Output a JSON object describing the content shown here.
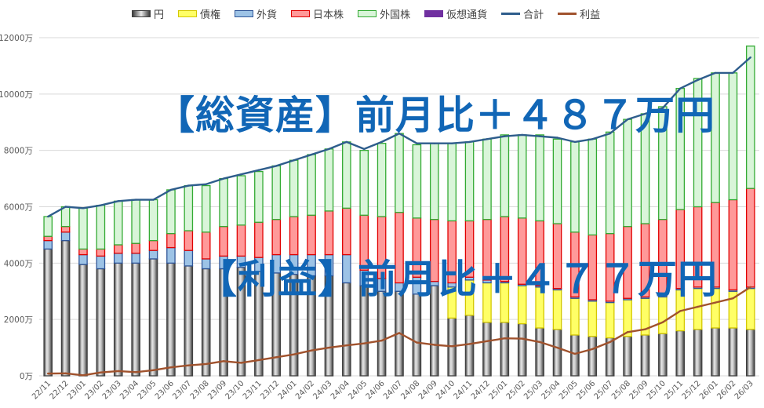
{
  "chart_data": {
    "type": "bar",
    "stacked": true,
    "categories": [
      "22/11",
      "22/12",
      "23/01",
      "23/02",
      "23/03",
      "23/04",
      "23/05",
      "23/06",
      "23/07",
      "23/08",
      "23/09",
      "23/10",
      "23/11",
      "23/12",
      "24/01",
      "24/02",
      "24/03",
      "24/04",
      "24/05",
      "24/06",
      "24/07",
      "24/08",
      "24/09",
      "24/10",
      "24/11",
      "24/12",
      "25/01",
      "25/02",
      "25/03",
      "25/04",
      "25/05",
      "25/06",
      "25/07",
      "25/08",
      "25/09",
      "25/10",
      "25/11",
      "25/12",
      "26/01",
      "26/02",
      "26/03"
    ],
    "series": [
      {
        "name": "円",
        "color": "#7f7f7f",
        "values": [
          4500,
          4800,
          3950,
          3800,
          4000,
          4000,
          4150,
          4000,
          3900,
          3800,
          3800,
          3850,
          3700,
          3650,
          3600,
          3550,
          3550,
          3300,
          3200,
          3000,
          3000,
          2900,
          3200,
          2050,
          2150,
          1900,
          1900,
          1850,
          1700,
          1650,
          1450,
          1400,
          1350,
          1400,
          1450,
          1500,
          1600,
          1650,
          1700,
          1700,
          1650
        ]
      },
      {
        "name": "債権",
        "color": "#ffff66",
        "values": [
          0,
          0,
          0,
          0,
          0,
          0,
          0,
          0,
          0,
          0,
          0,
          0,
          0,
          0,
          0,
          0,
          0,
          0,
          0,
          0,
          0,
          0,
          0,
          1100,
          1250,
          1400,
          1400,
          1350,
          1450,
          1400,
          1300,
          1250,
          1250,
          1300,
          1300,
          1300,
          1450,
          1450,
          1400,
          1300,
          1450
        ]
      },
      {
        "name": "外貨",
        "color": "#9dc3e6",
        "values": [
          300,
          300,
          350,
          450,
          350,
          350,
          300,
          550,
          550,
          350,
          450,
          400,
          500,
          650,
          700,
          750,
          750,
          1000,
          550,
          450,
          300,
          600,
          150,
          150,
          100,
          100,
          50,
          50,
          50,
          50,
          50,
          50,
          50,
          50,
          50,
          50,
          50,
          50,
          50,
          50,
          50
        ]
      },
      {
        "name": "日本株",
        "color": "#ff9999",
        "values": [
          150,
          200,
          200,
          250,
          300,
          350,
          350,
          500,
          700,
          950,
          1050,
          1100,
          1250,
          1250,
          1350,
          1400,
          1550,
          1650,
          1950,
          2200,
          2500,
          2100,
          2200,
          2200,
          2000,
          2150,
          2300,
          2350,
          2300,
          2300,
          2300,
          2300,
          2400,
          2550,
          2600,
          2700,
          2800,
          2850,
          3000,
          3200,
          3500
        ]
      },
      {
        "name": "外国株",
        "color": "#d9f5d9",
        "values": [
          700,
          700,
          1450,
          1550,
          1550,
          1550,
          1450,
          1550,
          1600,
          1650,
          1700,
          1750,
          1800,
          1900,
          2000,
          2150,
          2200,
          2350,
          2300,
          2600,
          2800,
          2600,
          2700,
          2750,
          2800,
          2850,
          2900,
          2950,
          3050,
          3000,
          3200,
          3400,
          3600,
          3800,
          3900,
          4000,
          4300,
          4550,
          4600,
          4500,
          5050
        ]
      },
      {
        "name": "仮想通貨",
        "color": "#7030a0",
        "values": [
          0,
          0,
          0,
          0,
          0,
          0,
          0,
          0,
          0,
          0,
          0,
          0,
          0,
          0,
          0,
          0,
          0,
          0,
          0,
          0,
          0,
          0,
          0,
          0,
          0,
          0,
          0,
          0,
          0,
          0,
          0,
          0,
          0,
          0,
          0,
          0,
          0,
          0,
          0,
          0,
          0
        ]
      }
    ],
    "lines": [
      {
        "name": "合計",
        "color": "#2e5d8c",
        "values": [
          5650,
          6000,
          5950,
          6050,
          6200,
          6250,
          6250,
          6600,
          6750,
          6800,
          7000,
          7150,
          7300,
          7450,
          7650,
          7850,
          8050,
          8300,
          8050,
          8300,
          8600,
          8250,
          8250,
          8250,
          8300,
          8400,
          8500,
          8550,
          8500,
          8450,
          8300,
          8400,
          8600,
          9100,
          9300,
          9500,
          10200,
          10500,
          10750,
          10750,
          11300
        ]
      },
      {
        "name": "利益",
        "color": "#a0522d",
        "values": [
          80,
          90,
          20,
          120,
          170,
          130,
          200,
          300,
          370,
          420,
          520,
          460,
          560,
          660,
          760,
          900,
          1000,
          1080,
          1150,
          1250,
          1520,
          1180,
          1100,
          1050,
          1130,
          1230,
          1330,
          1320,
          1200,
          1000,
          780,
          950,
          1200,
          1550,
          1650,
          1900,
          2300,
          2450,
          2600,
          2750,
          3150
        ]
      }
    ],
    "ylim": [
      0,
      12000
    ],
    "yticks": [
      0,
      2000,
      4000,
      6000,
      8000,
      10000,
      12000
    ],
    "ytick_labels": [
      "0万",
      "2000万",
      "4000万",
      "6000万",
      "8000万",
      "10000万",
      "12000万"
    ],
    "legend_position": "top",
    "grid": true,
    "annotations": [
      "【総資産】前月比＋４８７万円",
      "【利益】前月比＋４７７万円"
    ]
  }
}
